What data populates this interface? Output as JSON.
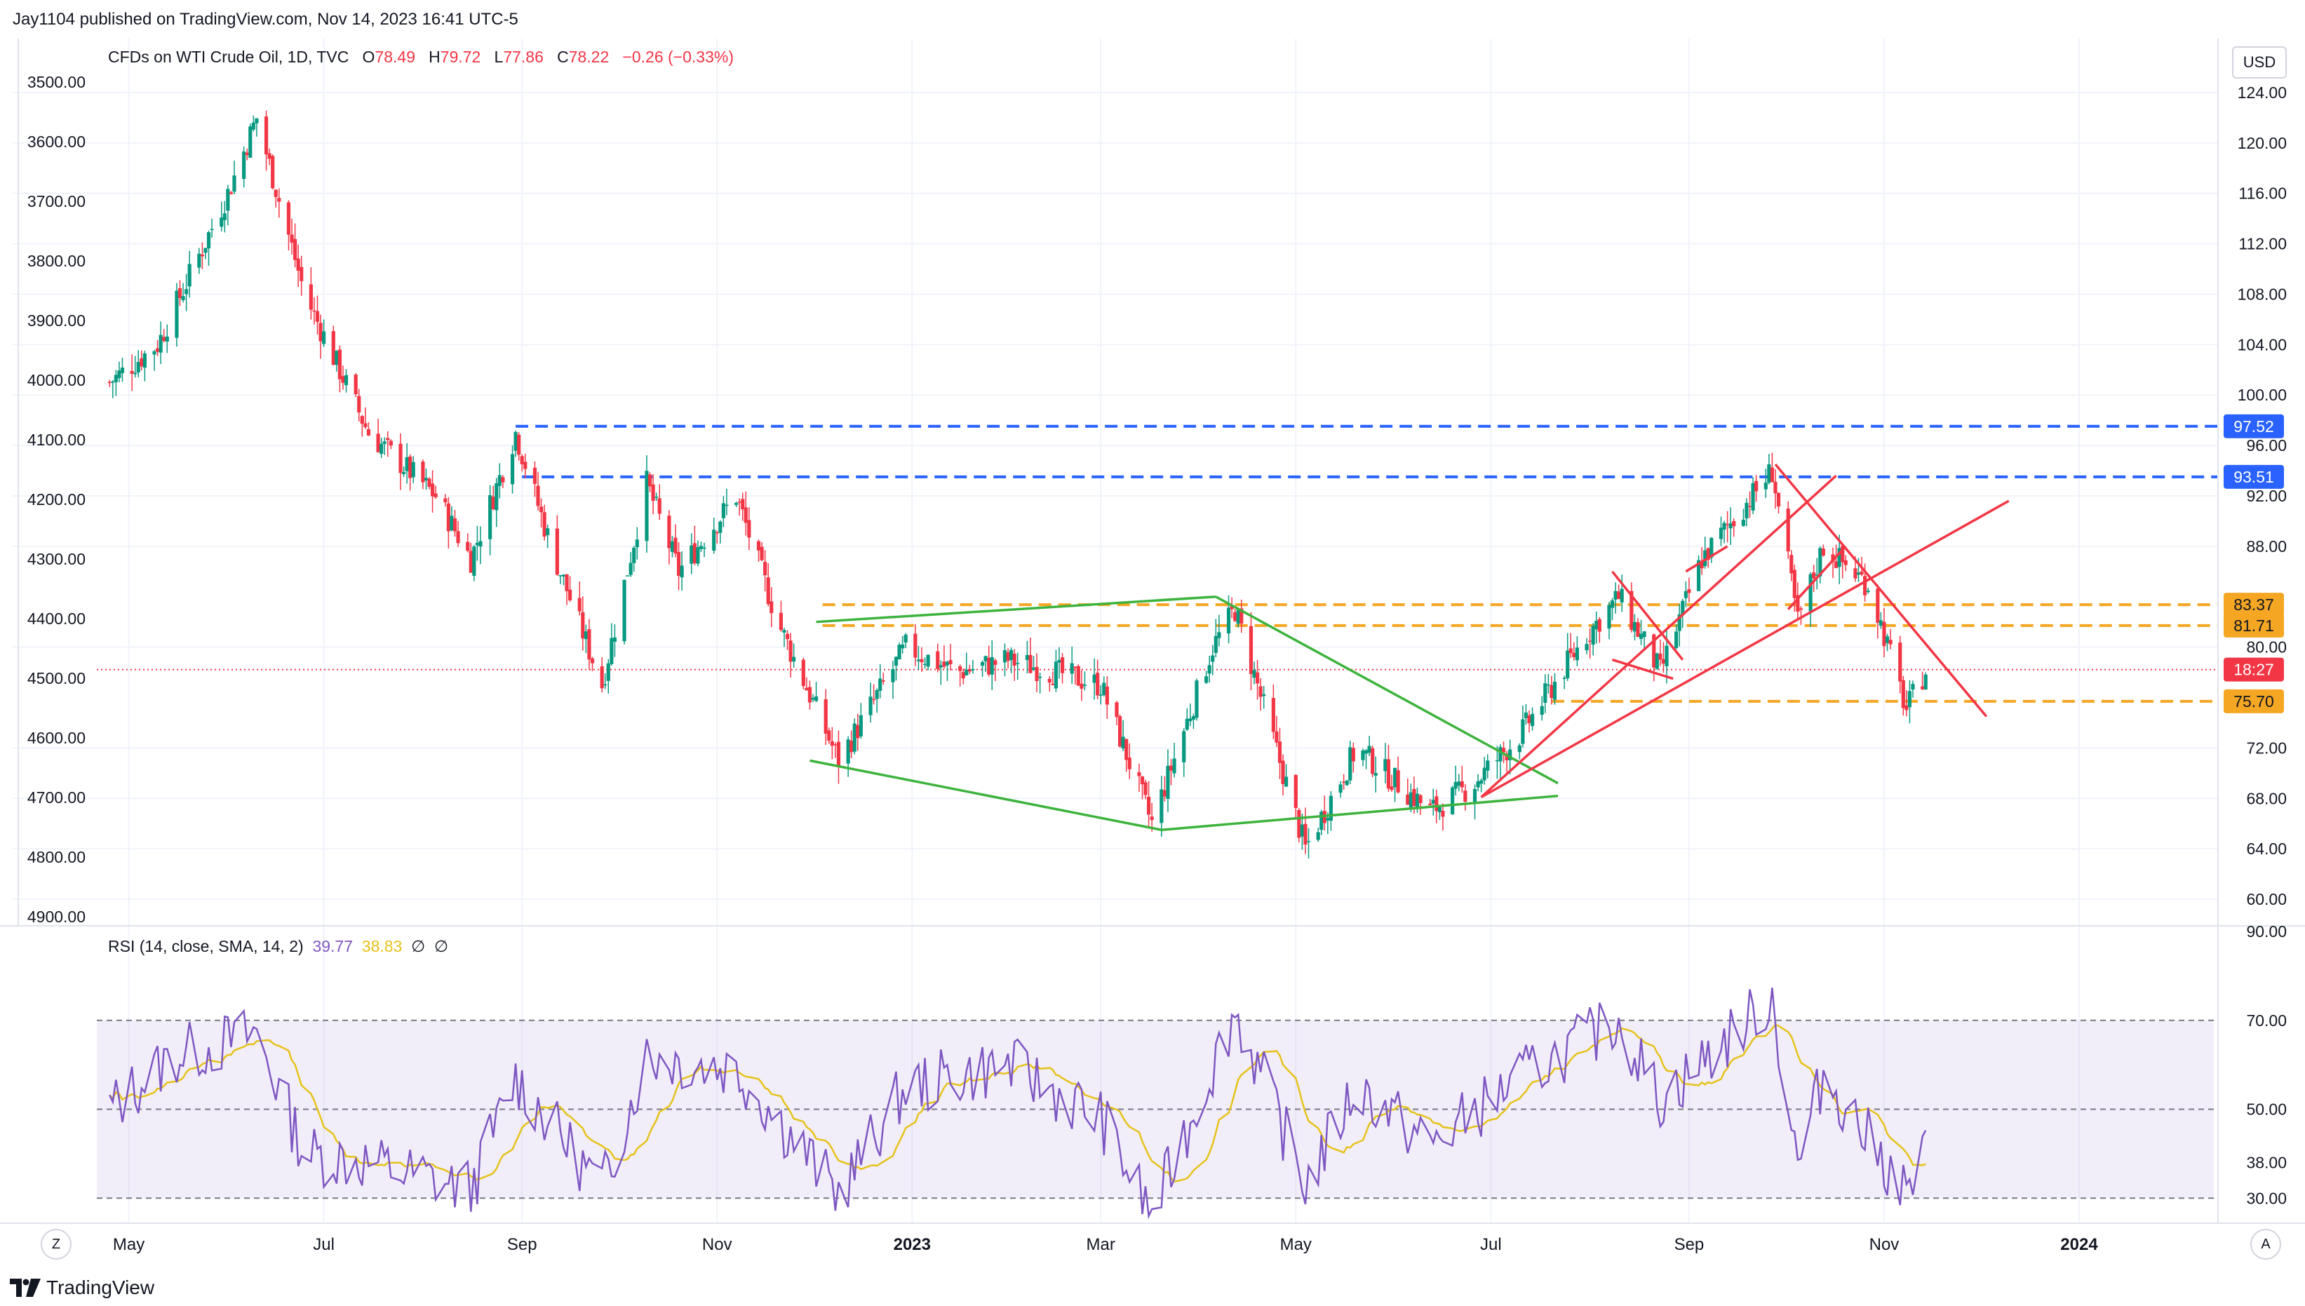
{
  "header": {
    "published_by": "Jay1104 published on TradingView.com, Nov 14, 2023 16:41 UTC-5"
  },
  "legend": {
    "symbol": "CFDs on WTI Crude Oil, 1D, TVC",
    "o_label": "O",
    "o_value": "78.49",
    "h_label": "H",
    "h_value": "79.72",
    "l_label": "L",
    "l_value": "77.86",
    "c_label": "C",
    "c_value": "78.22",
    "change": "−0.26 (−0.33%)"
  },
  "rsi_legend": {
    "label": "RSI (14, close, SMA, 14, 2)",
    "rsi_value": "39.77",
    "sma_value": "38.83",
    "extra1": "∅",
    "extra2": "∅"
  },
  "buttons": {
    "currency": "USD",
    "left_corner": "Z",
    "right_corner": "A"
  },
  "brand": {
    "name": "TradingView"
  },
  "colors": {
    "up": "#089981",
    "down": "#f23645",
    "rsi": "#7e57c2",
    "rsi_sma": "#e6c21a",
    "blue_level": "#2962ff",
    "orange_level": "#f5a623",
    "green_line": "#3db33d",
    "red_line": "#f23645"
  },
  "chart_data": [
    {
      "type": "candlestick",
      "title": "CFDs on WTI Crude Oil, 1D, TVC",
      "x_ticks": [
        "May",
        "Jul",
        "Sep",
        "Nov",
        "2023",
        "Mar",
        "May",
        "Jul",
        "Sep",
        "Nov",
        "2024"
      ],
      "y_right_ticks": [
        "124.00",
        "120.00",
        "116.00",
        "112.00",
        "108.00",
        "104.00",
        "100.00",
        "96.00",
        "92.00",
        "88.00",
        "80.00",
        "72.00",
        "68.00",
        "64.00",
        "60.00"
      ],
      "y_left_ticks": [
        "3500.00",
        "3600.00",
        "3700.00",
        "3800.00",
        "3900.00",
        "4000.00",
        "4100.00",
        "4200.00",
        "4300.00",
        "4400.00",
        "4500.00",
        "4600.00",
        "4700.00",
        "4800.00",
        "4900.00"
      ],
      "ylim": [
        58,
        128
      ],
      "last_price": 78.22,
      "countdown_label": "18:27",
      "levels": [
        {
          "value": 97.52,
          "label": "97.52",
          "style": "blue-dashed"
        },
        {
          "value": 93.51,
          "label": "93.51",
          "style": "blue-dashed"
        },
        {
          "value": 83.37,
          "label": "83.37",
          "style": "orange-dashed"
        },
        {
          "value": 81.71,
          "label": "81.71",
          "style": "orange-dashed"
        },
        {
          "value": 75.7,
          "label": "75.70",
          "style": "orange-dashed"
        }
      ],
      "swing_path_approx": [
        [
          "2022-04-25",
          101
        ],
        [
          "2022-05-10",
          104
        ],
        [
          "2022-06-01",
          116
        ],
        [
          "2022-06-10",
          122
        ],
        [
          "2022-06-25",
          108
        ],
        [
          "2022-07-15",
          97
        ],
        [
          "2022-08-05",
          92
        ],
        [
          "2022-08-16",
          87
        ],
        [
          "2022-08-30",
          97
        ],
        [
          "2022-09-10",
          88
        ],
        [
          "2022-09-26",
          77
        ],
        [
          "2022-10-10",
          93
        ],
        [
          "2022-10-20",
          86
        ],
        [
          "2022-11-07",
          92
        ],
        [
          "2022-11-20",
          82
        ],
        [
          "2022-12-09",
          71
        ],
        [
          "2022-12-30",
          80
        ],
        [
          "2023-01-15",
          78
        ],
        [
          "2023-01-31",
          79
        ],
        [
          "2023-02-15",
          78
        ],
        [
          "2023-03-01",
          77
        ],
        [
          "2023-03-17",
          66
        ],
        [
          "2023-04-05",
          80
        ],
        [
          "2023-04-12",
          83
        ],
        [
          "2023-05-04",
          64
        ],
        [
          "2023-05-20",
          72
        ],
        [
          "2023-06-12",
          67
        ],
        [
          "2023-06-25",
          69
        ],
        [
          "2023-07-10",
          73
        ],
        [
          "2023-07-31",
          81
        ],
        [
          "2023-08-10",
          84
        ],
        [
          "2023-08-23",
          78
        ],
        [
          "2023-09-05",
          87
        ],
        [
          "2023-09-27",
          94
        ],
        [
          "2023-10-05",
          82
        ],
        [
          "2023-10-13",
          88
        ],
        [
          "2023-10-27",
          85
        ],
        [
          "2023-11-01",
          81
        ],
        [
          "2023-11-08",
          75
        ],
        [
          "2023-11-14",
          78.2
        ]
      ],
      "trendlines": [
        {
          "color": "green",
          "points": [
            [
              "2022-12-02",
              82
            ],
            [
              "2023-04-06",
              84
            ]
          ]
        },
        {
          "color": "green",
          "points": [
            [
              "2022-11-30",
              71
            ],
            [
              "2023-03-20",
              65.5
            ]
          ]
        },
        {
          "color": "green",
          "points": [
            [
              "2023-03-20",
              65.5
            ],
            [
              "2023-07-22",
              68.2
            ]
          ]
        },
        {
          "color": "green",
          "points": [
            [
              "2023-04-06",
              84
            ],
            [
              "2023-07-22",
              69.2
            ]
          ]
        },
        {
          "color": "red",
          "points": [
            [
              "2023-06-28",
              68.1
            ],
            [
              "2023-10-17",
              93.6
            ]
          ]
        },
        {
          "color": "red",
          "points": [
            [
              "2023-06-28",
              68.1
            ],
            [
              "2023-12-10",
              91.6
            ]
          ]
        },
        {
          "color": "red",
          "points": [
            [
              "2023-09-28",
              94.5
            ],
            [
              "2023-12-03",
              74.5
            ]
          ]
        }
      ]
    },
    {
      "type": "line",
      "title": "RSI (14, close, SMA, 14, 2)",
      "series": [
        {
          "name": "RSI",
          "last_value": 39.77
        },
        {
          "name": "SMA",
          "last_value": 38.83
        }
      ],
      "y_ticks": [
        "90.00",
        "70.00",
        "50.00",
        "38.00",
        "30.00"
      ],
      "band": [
        30,
        70
      ],
      "midline": 50,
      "ylim": [
        25,
        90
      ],
      "rsi_path_approx": [
        [
          "2022-04-25",
          50
        ],
        [
          "2022-05-15",
          62
        ],
        [
          "2022-06-10",
          67
        ],
        [
          "2022-06-25",
          40
        ],
        [
          "2022-07-15",
          38
        ],
        [
          "2022-08-16",
          32
        ],
        [
          "2022-08-30",
          57
        ],
        [
          "2022-09-26",
          32
        ],
        [
          "2022-10-10",
          62
        ],
        [
          "2022-11-07",
          59
        ],
        [
          "2022-12-09",
          31
        ],
        [
          "2022-12-30",
          55
        ],
        [
          "2023-01-31",
          60
        ],
        [
          "2023-03-01",
          48
        ],
        [
          "2023-03-17",
          26
        ],
        [
          "2023-04-12",
          72
        ],
        [
          "2023-05-04",
          33
        ],
        [
          "2023-05-20",
          55
        ],
        [
          "2023-06-12",
          42
        ],
        [
          "2023-07-10",
          57
        ],
        [
          "2023-08-10",
          70
        ],
        [
          "2023-08-23",
          52
        ],
        [
          "2023-09-27",
          75
        ],
        [
          "2023-10-05",
          37
        ],
        [
          "2023-10-13",
          58
        ],
        [
          "2023-11-08",
          31
        ],
        [
          "2023-11-14",
          39.8
        ]
      ]
    }
  ]
}
